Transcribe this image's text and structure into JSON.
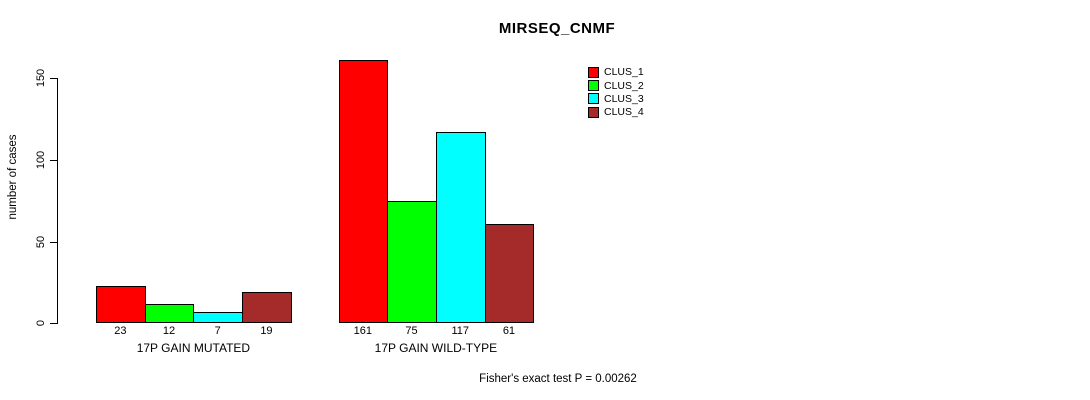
{
  "chart_data": {
    "type": "bar",
    "title": "MIRSEQ_CNMF",
    "ylabel": "number of cases",
    "categories": [
      "17P GAIN MUTATED",
      "17P GAIN WILD-TYPE"
    ],
    "series": [
      {
        "name": "CLUS_1",
        "color": "#FF0000",
        "values": [
          23,
          161
        ]
      },
      {
        "name": "CLUS_2",
        "color": "#00FF00",
        "values": [
          12,
          75
        ]
      },
      {
        "name": "CLUS_3",
        "color": "#00FFFF",
        "values": [
          7,
          117
        ]
      },
      {
        "name": "CLUS_4",
        "color": "#A52A2A",
        "values": [
          19,
          61
        ]
      }
    ],
    "value_labels": [
      [
        23,
        12,
        7,
        19
      ],
      [
        161,
        75,
        117,
        61
      ]
    ],
    "yticks": [
      0,
      50,
      100,
      150
    ],
    "ylim": [
      0,
      165
    ],
    "grid": false,
    "legend_position": "top-right",
    "annotation": "Fisher's exact test P = 0.00262"
  }
}
